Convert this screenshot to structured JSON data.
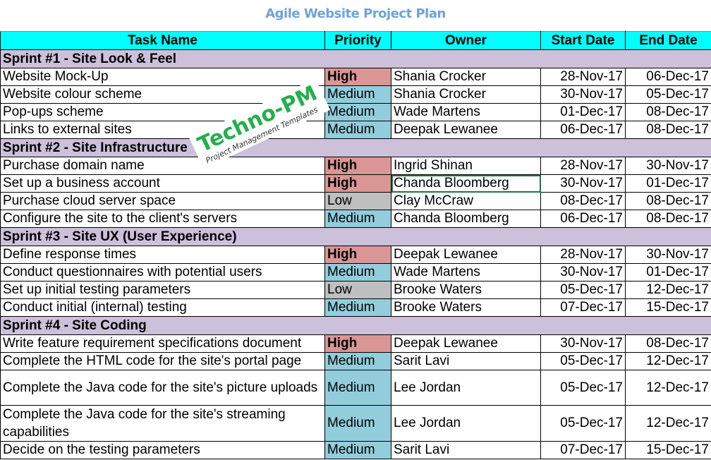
{
  "title": "Agile Website Project Plan",
  "headers": [
    "Task Name",
    "Priority",
    "Owner",
    "Start Date",
    "End Date"
  ],
  "colors": {
    "header": "#00ffff",
    "sprint": "#ccc0da",
    "High": "#da9694",
    "Medium": "#92cddc",
    "Low": "#bfbfbf",
    "title": "#6fa3d8"
  },
  "watermark": {
    "brand": "Techno-PM",
    "tagline": "Project Management Templates"
  },
  "selected_cell": "Chanda Bloomberg (Set up a business account)",
  "sprints": [
    {
      "name": "Sprint #1 - Site Look & Feel",
      "tasks": [
        {
          "task": "Website Mock-Up",
          "priority": "High",
          "owner": "Shania Crocker",
          "start": "28-Nov-17",
          "end": "06-Dec-17"
        },
        {
          "task": "Website colour scheme",
          "priority": "Medium",
          "owner": "Shania Crocker",
          "start": "30-Nov-17",
          "end": "05-Dec-17"
        },
        {
          "task": "Pop-ups scheme",
          "priority": "Medium",
          "owner": "Wade Martens",
          "start": "01-Dec-17",
          "end": "08-Dec-17"
        },
        {
          "task": "Links to external sites",
          "priority": "Medium",
          "owner": "Deepak Lewanee",
          "start": "06-Dec-17",
          "end": "08-Dec-17"
        }
      ]
    },
    {
      "name": "Sprint #2 - Site Infrastructure",
      "tasks": [
        {
          "task": "Purchase domain name",
          "priority": "High",
          "owner": "Ingrid Shinan",
          "start": "28-Nov-17",
          "end": "30-Nov-17"
        },
        {
          "task": "Set up a business account",
          "priority": "High",
          "owner": "Chanda Bloomberg",
          "start": "30-Nov-17",
          "end": "01-Dec-17",
          "selected": true
        },
        {
          "task": "Purchase cloud server space",
          "priority": "Low",
          "owner": "Clay McCraw",
          "start": "08-Dec-17",
          "end": "08-Dec-17"
        },
        {
          "task": "Configure the site to the client's servers",
          "priority": "Medium",
          "owner": "Chanda Bloomberg",
          "start": "06-Dec-17",
          "end": "08-Dec-17"
        }
      ]
    },
    {
      "name": "Sprint #3 - Site UX (User Experience)",
      "tasks": [
        {
          "task": "Define response times",
          "priority": "High",
          "owner": "Deepak Lewanee",
          "start": "28-Nov-17",
          "end": "30-Nov-17"
        },
        {
          "task": "Conduct questionnaires with potential users",
          "priority": "Medium",
          "owner": "Wade Martens",
          "start": "30-Nov-17",
          "end": "01-Dec-17"
        },
        {
          "task": "Set up initial testing parameters",
          "priority": "Low",
          "owner": "Brooke Waters",
          "start": "05-Dec-17",
          "end": "12-Dec-17"
        },
        {
          "task": "Conduct initial (internal) testing",
          "priority": "Medium",
          "owner": "Brooke Waters",
          "start": "07-Dec-17",
          "end": "15-Dec-17"
        }
      ]
    },
    {
      "name": "Sprint #4 - Site Coding",
      "tasks": [
        {
          "task": "Write feature requirement specifications document",
          "priority": "High",
          "owner": "Deepak Lewanee",
          "start": "30-Nov-17",
          "end": "08-Dec-17"
        },
        {
          "task": "Complete the HTML code for the site's portal page",
          "priority": "Medium",
          "owner": "Sarit Lavi",
          "start": "05-Dec-17",
          "end": "12-Dec-17"
        },
        {
          "task": "Complete the Java code for the site's picture uploads",
          "priority": "Medium",
          "owner": "Lee Jordan",
          "start": "05-Dec-17",
          "end": "12-Dec-17",
          "tall": true
        },
        {
          "task": "Complete the Java code for the site's streaming capabilities",
          "priority": "Medium",
          "owner": "Lee Jordan",
          "start": "05-Dec-17",
          "end": "12-Dec-17",
          "tall": true
        },
        {
          "task": "Decide on the testing parameters",
          "priority": "Medium",
          "owner": "Sarit Lavi",
          "start": "07-Dec-17",
          "end": "15-Dec-17"
        }
      ]
    }
  ]
}
